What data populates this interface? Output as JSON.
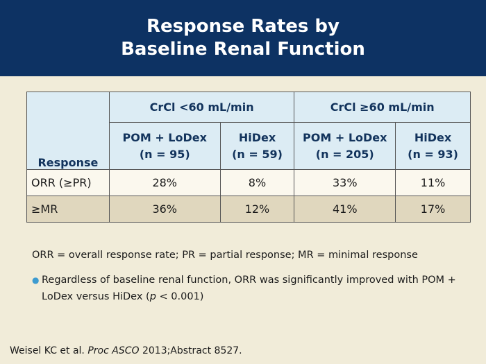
{
  "title": {
    "line1": "Response Rates by",
    "line2": "Baseline Renal Function"
  },
  "table": {
    "group_headers": [
      "CrCl <60 mL/min",
      "CrCl ≥60 mL/min"
    ],
    "response_header": "Response",
    "columns": [
      {
        "name": "POM + LoDex",
        "n": "(n = 95)"
      },
      {
        "name": "HiDex",
        "n": "(n = 59)"
      },
      {
        "name": "POM + LoDex",
        "n": "(n = 205)"
      },
      {
        "name": "HiDex",
        "n": "(n = 93)"
      }
    ],
    "rows": [
      {
        "label": "ORR (≥PR)",
        "values": [
          "28%",
          "8%",
          "33%",
          "11%"
        ]
      },
      {
        "label": "≥MR",
        "values": [
          "36%",
          "12%",
          "41%",
          "17%"
        ]
      }
    ]
  },
  "notes": {
    "abbreviations": "ORR = overall response rate; PR = partial response; MR = minimal response",
    "bullet_part1": "Regardless of baseline renal function, ORR was significantly improved with POM + LoDex versus HiDex (",
    "bullet_p": "p",
    "bullet_part2": " < 0.001)"
  },
  "citation": {
    "authors": "Weisel KC et al. ",
    "journal": "Proc ASCO",
    "rest": " 2013;Abstract 8527."
  },
  "colors": {
    "header_bg": "#0d3263",
    "page_bg": "#f1ecd9",
    "table_header_bg": "#dcecf4",
    "row_light": "#fbf8ee",
    "row_dark": "#e0d7be",
    "bullet": "#3d9bd0"
  }
}
